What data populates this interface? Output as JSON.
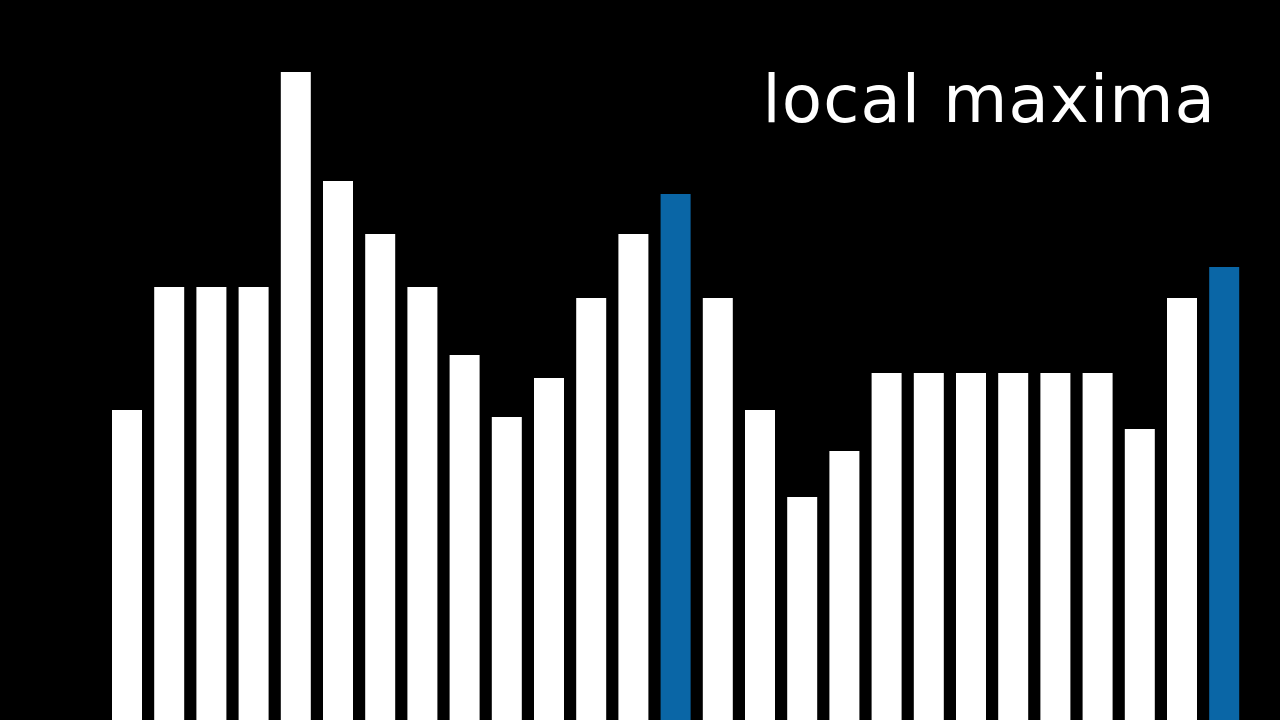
{
  "chart_data": {
    "type": "bar",
    "title": "local maxima",
    "values": [
      310,
      433,
      433,
      433,
      648,
      539,
      486,
      433,
      365,
      303,
      342,
      422,
      486,
      526,
      422,
      310,
      223,
      269,
      347,
      347,
      347,
      347,
      347,
      347,
      291,
      422,
      453
    ],
    "highlighted_indices": [
      13,
      26
    ],
    "ylim": [
      0,
      720
    ],
    "grid": false,
    "colors": {
      "background": "#000000",
      "bar": "#ffffff",
      "highlight": "#0a66a6",
      "text": "#ffffff"
    }
  }
}
